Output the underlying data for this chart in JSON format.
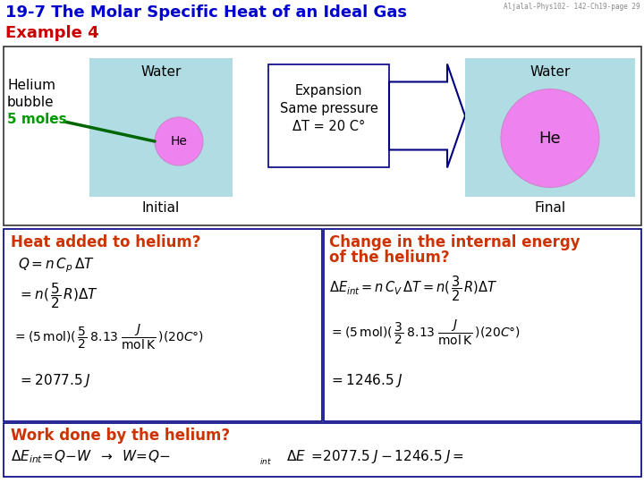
{
  "title_line1": "19-7 The Molar Specific Heat of an Ideal Gas",
  "title_line2": "Example 4",
  "watermark": "Aljalal-Phys102- 142-Ch19-page 29",
  "title_color": "#0000CC",
  "example_color": "#CC0000",
  "bg_color": "#FFFFFF",
  "water_color": "#B0DDE4",
  "he_color": "#EE82EE",
  "he_border": "#CC88CC",
  "helium_label1": "Helium",
  "helium_label2": "bubble",
  "moles_label": "5 moles",
  "water_label": "Water",
  "he_label": "He",
  "initial_label": "Initial",
  "final_label": "Final",
  "expansion_line1": "Expansion",
  "expansion_line2": "Same pressure",
  "expansion_line3": "ΔT = 20 C°",
  "heat_title": "Heat added to helium?",
  "heat_color": "#CC3300",
  "change_title1": "Change in the internal energy",
  "change_title2": "of the helium?",
  "change_color": "#CC3300",
  "work_title": "Work done by the helium?",
  "work_color": "#CC3300",
  "navy": "#000080",
  "green_line_color": "#006600",
  "moles_color": "#009900",
  "box_border": "#000080",
  "dark_gray": "#333333"
}
